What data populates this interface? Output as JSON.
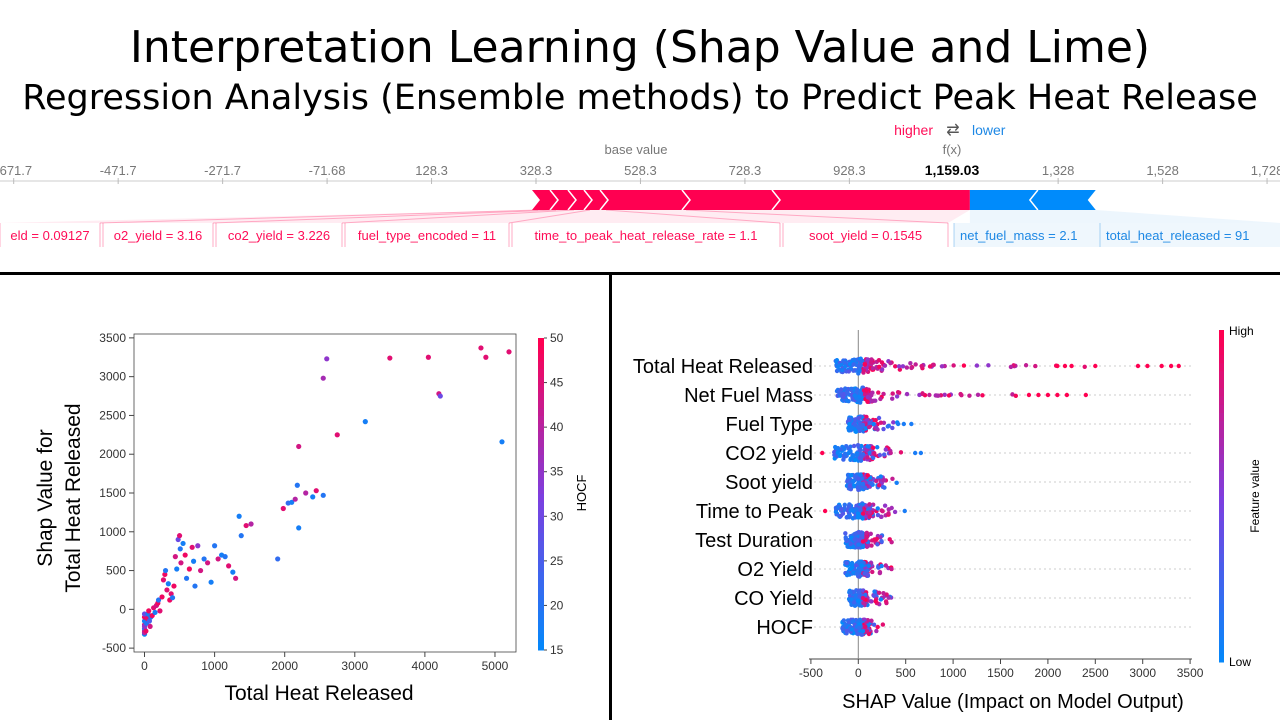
{
  "title": {
    "line1": "Interpretation Learning (Shap Value and Lime)",
    "line2": "Regression Analysis (Ensemble methods)  to Predict Peak Heat Release"
  },
  "colors": {
    "high": "#ff0051",
    "low": "#008bfb",
    "text_gray": "#777777",
    "text_red": "#ff0d57",
    "text_blue": "#1e88e5"
  },
  "force_plot": {
    "legend_higher": "higher",
    "legend_arrows": "⇄",
    "legend_lower": "lower",
    "base_value_label": "base value",
    "fx_label": "f(x)",
    "fx_value": "1,159.03",
    "fx_numeric": 1159.03,
    "base_value": 328.3,
    "ticks": [
      "-671.7",
      "-471.7",
      "-271.7",
      "-71.68",
      "128.3",
      "328.3",
      "528.3",
      "728.3",
      "928.3",
      "1,328",
      "1,528",
      "1,728"
    ],
    "tick_values": [
      -671.7,
      -471.7,
      -271.7,
      -71.68,
      128.3,
      328.3,
      528.3,
      728.3,
      928.3,
      1328,
      1528,
      1728
    ],
    "positive_features": [
      {
        "label": "eld = 0.09127"
      },
      {
        "label": "o2_yield = 3.16"
      },
      {
        "label": "co2_yield = 3.226"
      },
      {
        "label": "fuel_type_encoded = 11"
      },
      {
        "label": "time_to_peak_heat_release_rate = 1.1"
      },
      {
        "label": "soot_yield = 0.1545"
      }
    ],
    "negative_features": [
      {
        "label": "net_fuel_mass = 2.1"
      },
      {
        "label": "total_heat_released = 91"
      }
    ]
  },
  "chart_data": [
    {
      "type": "scatter",
      "xlabel": "Total Heat Released",
      "ylabel": "Shap Value for\nTotal Heat Released",
      "ylabel_line1": "Shap Value for",
      "ylabel_line2": "Total Heat Released",
      "xlim": [
        -150,
        5300
      ],
      "ylim": [
        -550,
        3550
      ],
      "xticks": [
        0,
        1000,
        2000,
        3000,
        4000,
        5000
      ],
      "yticks": [
        -500,
        0,
        500,
        1000,
        1500,
        2000,
        2500,
        3000,
        3500
      ],
      "colorbar": {
        "label": "HOCF",
        "min": 15,
        "max": 50,
        "ticks": [
          15,
          20,
          25,
          30,
          35,
          40,
          45,
          50
        ]
      },
      "points": [
        [
          0,
          -320,
          16
        ],
        [
          0,
          -280,
          48
        ],
        [
          0,
          -250,
          22
        ],
        [
          0,
          -200,
          45
        ],
        [
          0,
          -150,
          18
        ],
        [
          0,
          -100,
          48
        ],
        [
          0,
          -60,
          30
        ],
        [
          0,
          -300,
          40
        ],
        [
          0,
          -220,
          35
        ],
        [
          20,
          -280,
          48
        ],
        [
          30,
          -180,
          20
        ],
        [
          40,
          -120,
          46
        ],
        [
          50,
          -60,
          18
        ],
        [
          60,
          -20,
          48
        ],
        [
          70,
          -150,
          25
        ],
        [
          80,
          -220,
          44
        ],
        [
          90,
          -100,
          20
        ],
        [
          110,
          -80,
          48
        ],
        [
          130,
          20,
          46
        ],
        [
          150,
          -40,
          18
        ],
        [
          170,
          50,
          44
        ],
        [
          190,
          80,
          48
        ],
        [
          200,
          120,
          20
        ],
        [
          220,
          -20,
          46
        ],
        [
          250,
          160,
          48
        ],
        [
          270,
          380,
          46
        ],
        [
          290,
          450,
          48
        ],
        [
          300,
          500,
          20
        ],
        [
          320,
          250,
          46
        ],
        [
          340,
          330,
          18
        ],
        [
          360,
          120,
          48
        ],
        [
          380,
          200,
          46
        ],
        [
          400,
          150,
          20
        ],
        [
          420,
          300,
          48
        ],
        [
          440,
          680,
          44
        ],
        [
          460,
          520,
          18
        ],
        [
          480,
          900,
          30
        ],
        [
          500,
          950,
          46
        ],
        [
          510,
          780,
          20
        ],
        [
          520,
          600,
          44
        ],
        [
          550,
          850,
          18
        ],
        [
          580,
          700,
          48
        ],
        [
          600,
          400,
          20
        ],
        [
          640,
          520,
          48
        ],
        [
          680,
          800,
          46
        ],
        [
          700,
          620,
          18
        ],
        [
          720,
          300,
          20
        ],
        [
          760,
          820,
          35
        ],
        [
          800,
          500,
          44
        ],
        [
          850,
          650,
          20
        ],
        [
          900,
          600,
          44
        ],
        [
          950,
          350,
          18
        ],
        [
          1000,
          820,
          20
        ],
        [
          1050,
          650,
          44
        ],
        [
          1100,
          700,
          18
        ],
        [
          1150,
          680,
          20
        ],
        [
          1200,
          560,
          46
        ],
        [
          1260,
          480,
          18
        ],
        [
          1300,
          400,
          44
        ],
        [
          1350,
          1200,
          18
        ],
        [
          1380,
          950,
          20
        ],
        [
          1450,
          1080,
          46
        ],
        [
          1520,
          1100,
          40
        ],
        [
          1900,
          650,
          22
        ],
        [
          1980,
          1300,
          46
        ],
        [
          2050,
          1370,
          22
        ],
        [
          2100,
          1380,
          18
        ],
        [
          2150,
          1420,
          40
        ],
        [
          2180,
          1600,
          20
        ],
        [
          2200,
          2100,
          44
        ],
        [
          2200,
          1050,
          18
        ],
        [
          2300,
          1500,
          40
        ],
        [
          2400,
          1450,
          18
        ],
        [
          2450,
          1530,
          46
        ],
        [
          2550,
          1470,
          20
        ],
        [
          2550,
          2980,
          38
        ],
        [
          2600,
          3230,
          35
        ],
        [
          2750,
          2250,
          46
        ],
        [
          3150,
          2420,
          18
        ],
        [
          3500,
          3240,
          46
        ],
        [
          4050,
          3250,
          46
        ],
        [
          4200,
          2780,
          44
        ],
        [
          4220,
          2750,
          30
        ],
        [
          4800,
          3370,
          46
        ],
        [
          4870,
          3250,
          46
        ],
        [
          5100,
          2160,
          18
        ],
        [
          5200,
          3320,
          46
        ]
      ]
    },
    {
      "type": "scatter",
      "subtype": "shap-summary-beeswarm",
      "xlabel": "SHAP Value (Impact on Model Output)",
      "xlim": [
        -520,
        3520
      ],
      "xticks": [
        -500,
        0,
        500,
        1000,
        1500,
        2000,
        2500,
        3000,
        3500
      ],
      "colorbar": {
        "label": "Feature value",
        "high": "High",
        "low": "Low"
      },
      "features": [
        {
          "name": "Total Heat Released",
          "min": -380,
          "max": 3380,
          "outliers": [
            2100,
            2180,
            2250,
            2500,
            2950,
            3050,
            3200,
            3300,
            3380
          ]
        },
        {
          "name": "Net Fuel Mass",
          "min": -350,
          "max": 2400,
          "outliers": [
            1800,
            1900,
            2000,
            2100,
            2200,
            2400
          ]
        },
        {
          "name": "Fuel Type",
          "min": -130,
          "max": 560,
          "outliers": [
            420,
            480,
            560
          ]
        },
        {
          "name": "CO2 yield",
          "min": -380,
          "max": 660,
          "outliers": [
            -380,
            600,
            660
          ]
        },
        {
          "name": "Soot yield",
          "min": -150,
          "max": 500,
          "outliers": []
        },
        {
          "name": "Time to Peak",
          "min": -350,
          "max": 490,
          "outliers": [
            -350,
            490
          ]
        },
        {
          "name": "Test Duration",
          "min": -180,
          "max": 460,
          "outliers": []
        },
        {
          "name": "O2 Yield",
          "min": -180,
          "max": 510,
          "outliers": []
        },
        {
          "name": "CO Yield",
          "min": -120,
          "max": 430,
          "outliers": []
        },
        {
          "name": "HOCF",
          "min": -240,
          "max": 290,
          "outliers": []
        }
      ]
    }
  ]
}
